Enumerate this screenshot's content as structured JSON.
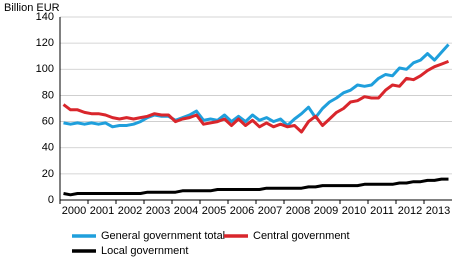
{
  "chart_data": {
    "type": "line",
    "y_label": "Billion EUR",
    "categories": [
      "2000",
      null,
      null,
      null,
      "2001",
      null,
      null,
      null,
      "2002",
      null,
      null,
      null,
      "2003",
      null,
      null,
      null,
      "2004",
      null,
      null,
      null,
      "2005",
      null,
      null,
      null,
      "2006",
      null,
      null,
      null,
      "2007",
      null,
      null,
      null,
      "2008",
      null,
      null,
      null,
      "2009",
      null,
      null,
      null,
      "2010",
      null,
      null,
      null,
      "2011",
      null,
      null,
      null,
      "2012",
      null,
      null,
      null,
      "2013",
      null,
      null,
      null
    ],
    "series": [
      {
        "name": "General government total",
        "color": "#1f9fdc",
        "values": [
          59,
          58,
          59,
          58,
          59,
          58,
          59,
          56,
          57,
          57,
          58,
          60,
          63,
          65,
          64,
          64,
          61,
          63,
          65,
          68,
          61,
          62,
          61,
          65,
          60,
          64,
          60,
          65,
          61,
          63,
          60,
          62,
          57,
          62,
          66,
          71,
          63,
          70,
          75,
          78,
          82,
          84,
          88,
          87,
          88,
          93,
          96,
          95,
          101,
          100,
          105,
          107,
          112,
          107,
          113,
          119
        ]
      },
      {
        "name": "Central government",
        "color": "#d9262c",
        "values": [
          73,
          69,
          69,
          67,
          66,
          66,
          65,
          63,
          62,
          63,
          62,
          63,
          64,
          66,
          65,
          65,
          60,
          62,
          63,
          65,
          58,
          59,
          60,
          62,
          57,
          62,
          57,
          61,
          56,
          59,
          56,
          58,
          56,
          57,
          52,
          60,
          64,
          57,
          62,
          67,
          70,
          75,
          76,
          79,
          78,
          78,
          84,
          88,
          87,
          93,
          92,
          95,
          99,
          102,
          104,
          106
        ]
      },
      {
        "name": "Local government",
        "color": "#000000",
        "values": [
          5,
          4,
          5,
          5,
          5,
          5,
          5,
          5,
          5,
          5,
          5,
          5,
          6,
          6,
          6,
          6,
          6,
          7,
          7,
          7,
          7,
          7,
          8,
          8,
          8,
          8,
          8,
          8,
          8,
          9,
          9,
          9,
          9,
          9,
          9,
          10,
          10,
          11,
          11,
          11,
          11,
          11,
          11,
          12,
          12,
          12,
          12,
          12,
          13,
          13,
          14,
          14,
          15,
          15,
          16,
          16
        ]
      }
    ],
    "ylim": [
      0,
      140
    ],
    "yticks": [
      0,
      20,
      40,
      60,
      80,
      100,
      120,
      140
    ],
    "grid": true,
    "legend": "bottom"
  }
}
